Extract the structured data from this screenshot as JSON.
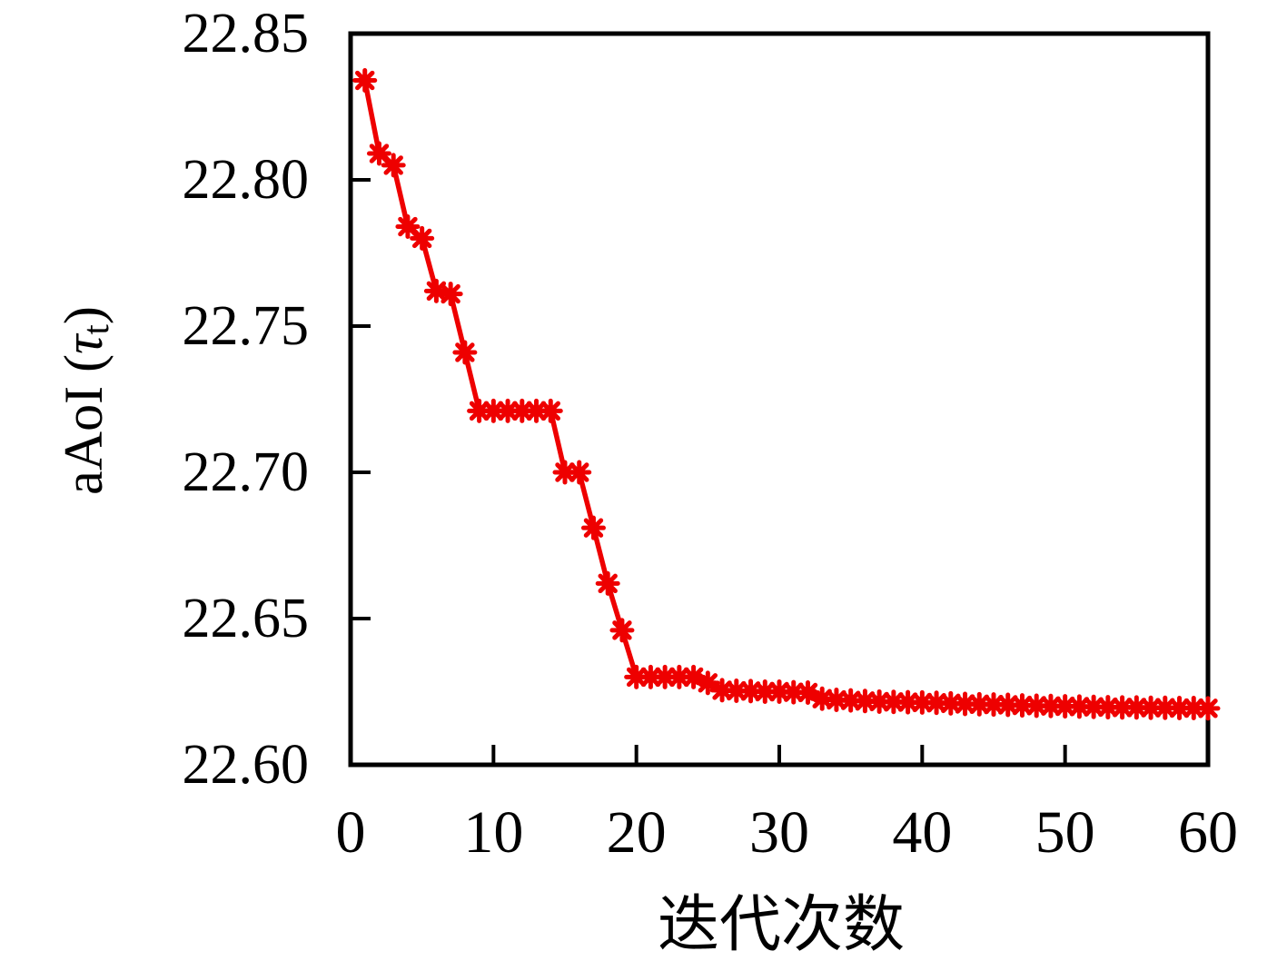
{
  "figure": {
    "background": "#ffffff",
    "axis_color": "#000000",
    "accent_color": "#ee0000"
  },
  "y_axis_title": {
    "prefix": "aAoI (",
    "tau": "τ",
    "sub": "t",
    "suffix": ")"
  },
  "x_axis_title": "迭代次数",
  "chart_data": {
    "type": "line",
    "title": "",
    "xlabel": "迭代次数",
    "ylabel": "aAoI (τ_t)",
    "xlim": [
      0,
      60
    ],
    "ylim": [
      22.6,
      22.85
    ],
    "grid": false,
    "legend_position": "none",
    "x_ticks": [
      0,
      10,
      20,
      30,
      40,
      50,
      60
    ],
    "x_tick_labels": [
      "0",
      "10",
      "20",
      "30",
      "40",
      "50",
      "60"
    ],
    "y_ticks": [
      22.6,
      22.65,
      22.7,
      22.75,
      22.8,
      22.85
    ],
    "y_tick_labels": [
      "22.60",
      "22.65",
      "22.70",
      "22.75",
      "22.80",
      "22.85"
    ],
    "series": [
      {
        "name": "aAoI",
        "color": "#ee0000",
        "marker": "asterisk",
        "x": [
          1,
          2,
          3,
          4,
          5,
          6,
          7,
          8,
          9,
          10,
          11,
          12,
          13,
          14,
          15,
          16,
          17,
          18,
          19,
          20,
          21,
          22,
          23,
          24,
          25,
          26,
          27,
          28,
          29,
          30,
          31,
          32,
          33,
          34,
          35,
          36,
          37,
          38,
          39,
          40,
          41,
          42,
          43,
          44,
          45,
          46,
          47,
          48,
          49,
          50,
          51,
          52,
          53,
          54,
          55,
          56,
          57,
          58,
          59,
          60
        ],
        "y": [
          22.834,
          22.809,
          22.805,
          22.784,
          22.78,
          22.762,
          22.761,
          22.741,
          22.721,
          22.721,
          22.721,
          22.721,
          22.721,
          22.721,
          22.7,
          22.7,
          22.681,
          22.662,
          22.646,
          22.63,
          22.63,
          22.63,
          22.63,
          22.63,
          22.628,
          22.6255,
          22.6253,
          22.6252,
          22.625,
          22.625,
          22.6248,
          22.6247,
          22.6226,
          22.6222,
          22.622,
          22.6218,
          22.6216,
          22.6215,
          22.6214,
          22.6213,
          22.6212,
          22.621,
          22.6208,
          22.6207,
          22.6206,
          22.6205,
          22.6203,
          22.6202,
          22.6201,
          22.62,
          22.6199,
          22.6198,
          22.6197,
          22.6196,
          22.6196,
          22.6195,
          22.6195,
          22.6194,
          22.6194,
          22.6193
        ]
      }
    ]
  }
}
